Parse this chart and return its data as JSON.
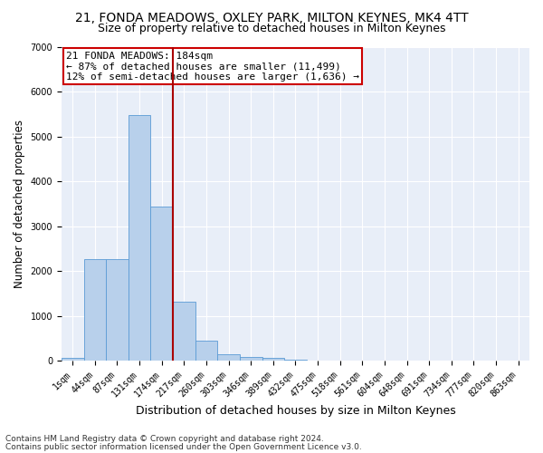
{
  "title1": "21, FONDA MEADOWS, OXLEY PARK, MILTON KEYNES, MK4 4TT",
  "title2": "Size of property relative to detached houses in Milton Keynes",
  "xlabel": "Distribution of detached houses by size in Milton Keynes",
  "ylabel": "Number of detached properties",
  "footer1": "Contains HM Land Registry data © Crown copyright and database right 2024.",
  "footer2": "Contains public sector information licensed under the Open Government Licence v3.0.",
  "annotation_line1": "21 FONDA MEADOWS: 184sqm",
  "annotation_line2": "← 87% of detached houses are smaller (11,499)",
  "annotation_line3": "12% of semi-detached houses are larger (1,636) →",
  "bar_labels": [
    "1sqm",
    "44sqm",
    "87sqm",
    "131sqm",
    "174sqm",
    "217sqm",
    "260sqm",
    "303sqm",
    "346sqm",
    "389sqm",
    "432sqm",
    "475sqm",
    "518sqm",
    "561sqm",
    "604sqm",
    "648sqm",
    "691sqm",
    "734sqm",
    "777sqm",
    "820sqm",
    "863sqm"
  ],
  "bar_heights": [
    75,
    2275,
    2275,
    5470,
    3440,
    1310,
    460,
    155,
    95,
    60,
    25,
    0,
    0,
    0,
    0,
    0,
    0,
    0,
    0,
    0,
    0
  ],
  "bar_color": "#b8d0eb",
  "bar_edgecolor": "#5b9bd5",
  "vline_color": "#aa0000",
  "vline_x": 4.5,
  "ylim": [
    0,
    7000
  ],
  "yticks": [
    0,
    1000,
    2000,
    3000,
    4000,
    5000,
    6000,
    7000
  ],
  "bg_color": "#e8eef8",
  "annotation_box_edgecolor": "#cc0000",
  "title1_fontsize": 10,
  "title2_fontsize": 9,
  "ylabel_fontsize": 8.5,
  "xlabel_fontsize": 9,
  "tick_fontsize": 7,
  "annotation_fontsize": 8,
  "footer_fontsize": 6.5
}
